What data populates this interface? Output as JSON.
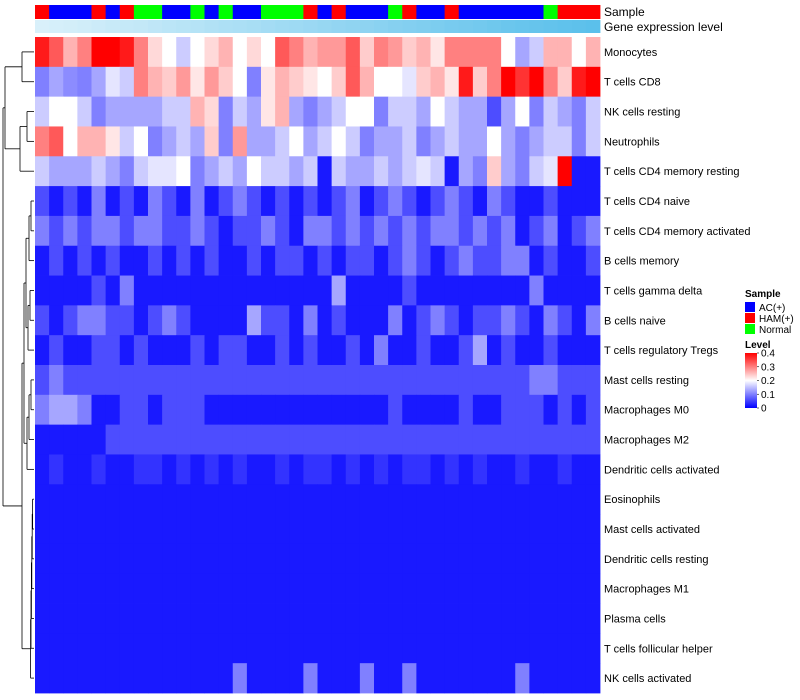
{
  "chart_data": {
    "type": "heatmap",
    "title": "",
    "annotation_rows": [
      {
        "name": "Sample",
        "label": "Sample"
      },
      {
        "name": "Gene expression level",
        "label": "Gene expression level"
      }
    ],
    "sample_annotation": [
      "HAM(+)",
      "AC(+)",
      "AC(+)",
      "AC(+)",
      "HAM(+)",
      "AC(+)",
      "HAM(+)",
      "Normal",
      "Normal",
      "AC(+)",
      "AC(+)",
      "Normal",
      "AC(+)",
      "Normal",
      "AC(+)",
      "AC(+)",
      "Normal",
      "Normal",
      "Normal",
      "HAM(+)",
      "AC(+)",
      "HAM(+)",
      "AC(+)",
      "AC(+)",
      "AC(+)",
      "Normal",
      "HAM(+)",
      "AC(+)",
      "AC(+)",
      "HAM(+)",
      "AC(+)",
      "AC(+)",
      "AC(+)",
      "AC(+)",
      "AC(+)",
      "AC(+)",
      "Normal",
      "HAM(+)",
      "HAM(+)",
      "HAM(+)"
    ],
    "expression_annotation": [
      0.05,
      0.08,
      0.1,
      0.12,
      0.15,
      0.18,
      0.2,
      0.22,
      0.25,
      0.28,
      0.3,
      0.32,
      0.35,
      0.38,
      0.4,
      0.42,
      0.45,
      0.48,
      0.5,
      0.52,
      0.55,
      0.58,
      0.6,
      0.62,
      0.65,
      0.68,
      0.7,
      0.72,
      0.75,
      0.78,
      0.8,
      0.82,
      0.85,
      0.88,
      0.9,
      0.92,
      0.94,
      0.96,
      0.98,
      1.0
    ],
    "rows": [
      "Monocytes",
      "T cells CD8",
      "NK cells resting",
      "Neutrophils",
      "T cells CD4 memory resting",
      "T cells CD4 naive",
      "T cells CD4 memory activated",
      "B cells memory",
      "T cells gamma delta",
      "B cells naive",
      "T cells regulatory  Tregs",
      "Mast cells resting",
      "Macrophages M0",
      "Macrophages M2",
      "Dendritic cells activated",
      "Eosinophils",
      "Mast cells activated",
      "Dendritic cells resting",
      "Macrophages M1",
      "Plasma cells",
      "T cells follicular helper",
      "NK cells activated"
    ],
    "values": [
      [
        0.38,
        0.33,
        0.26,
        0.3,
        0.4,
        0.4,
        0.38,
        0.3,
        0.23,
        0.2,
        0.16,
        0.2,
        0.23,
        0.26,
        0.2,
        0.23,
        0.2,
        0.33,
        0.3,
        0.26,
        0.28,
        0.28,
        0.33,
        0.24,
        0.3,
        0.28,
        0.24,
        0.26,
        0.22,
        0.3,
        0.3,
        0.3,
        0.3,
        0.2,
        0.13,
        0.16,
        0.26,
        0.26,
        0.2,
        0.26
      ],
      [
        0.1,
        0.13,
        0.11,
        0.1,
        0.13,
        0.18,
        0.16,
        0.3,
        0.26,
        0.24,
        0.28,
        0.22,
        0.28,
        0.24,
        0.2,
        0.1,
        0.22,
        0.26,
        0.24,
        0.22,
        0.2,
        0.24,
        0.33,
        0.26,
        0.2,
        0.2,
        0.18,
        0.24,
        0.26,
        0.22,
        0.38,
        0.24,
        0.3,
        0.4,
        0.36,
        0.4,
        0.3,
        0.24,
        0.38,
        0.4
      ],
      [
        0.16,
        0.2,
        0.2,
        0.16,
        0.1,
        0.13,
        0.13,
        0.13,
        0.13,
        0.16,
        0.16,
        0.26,
        0.23,
        0.1,
        0.16,
        0.13,
        0.22,
        0.26,
        0.13,
        0.1,
        0.13,
        0.16,
        0.2,
        0.2,
        0.1,
        0.16,
        0.16,
        0.13,
        0.2,
        0.16,
        0.13,
        0.13,
        0.06,
        0.13,
        0.2,
        0.1,
        0.16,
        0.13,
        0.1,
        0.16
      ],
      [
        0.3,
        0.33,
        0.2,
        0.26,
        0.26,
        0.22,
        0.16,
        0.2,
        0.1,
        0.13,
        0.16,
        0.13,
        0.24,
        0.1,
        0.28,
        0.13,
        0.13,
        0.16,
        0.2,
        0.13,
        0.16,
        0.2,
        0.16,
        0.1,
        0.13,
        0.13,
        0.16,
        0.1,
        0.13,
        0.16,
        0.13,
        0.13,
        0.2,
        0.13,
        0.1,
        0.13,
        0.16,
        0.16,
        0.1,
        0.16
      ],
      [
        0.16,
        0.13,
        0.13,
        0.13,
        0.16,
        0.13,
        0.1,
        0.16,
        0.18,
        0.18,
        0.2,
        0.1,
        0.13,
        0.16,
        0.13,
        0.2,
        0.16,
        0.16,
        0.13,
        0.16,
        0.02,
        0.16,
        0.13,
        0.13,
        0.16,
        0.13,
        0.16,
        0.18,
        0.16,
        0.02,
        0.13,
        0.1,
        0.24,
        0.13,
        0.1,
        0.16,
        0.18,
        0.4,
        0.02,
        0.02
      ],
      [
        0.06,
        0.02,
        0.06,
        0.02,
        0.1,
        0.02,
        0.06,
        0.02,
        0.1,
        0.06,
        0.02,
        0.1,
        0.02,
        0.06,
        0.1,
        0.06,
        0.02,
        0.06,
        0.02,
        0.06,
        0.02,
        0.06,
        0.1,
        0.02,
        0.06,
        0.1,
        0.06,
        0.02,
        0.06,
        0.1,
        0.06,
        0.02,
        0.1,
        0.06,
        0.02,
        0.02,
        0.06,
        0.02,
        0.02,
        0.02
      ],
      [
        0.1,
        0.06,
        0.1,
        0.06,
        0.1,
        0.1,
        0.06,
        0.1,
        0.1,
        0.06,
        0.06,
        0.1,
        0.06,
        0.02,
        0.06,
        0.06,
        0.1,
        0.06,
        0.02,
        0.1,
        0.1,
        0.06,
        0.1,
        0.06,
        0.1,
        0.06,
        0.1,
        0.06,
        0.1,
        0.1,
        0.06,
        0.1,
        0.06,
        0.1,
        0.02,
        0.06,
        0.1,
        0.02,
        0.06,
        0.1
      ],
      [
        0.02,
        0.06,
        0.02,
        0.06,
        0.02,
        0.06,
        0.02,
        0.02,
        0.06,
        0.02,
        0.06,
        0.02,
        0.06,
        0.02,
        0.02,
        0.06,
        0.02,
        0.06,
        0.06,
        0.02,
        0.06,
        0.02,
        0.06,
        0.06,
        0.02,
        0.06,
        0.1,
        0.06,
        0.02,
        0.06,
        0.1,
        0.06,
        0.06,
        0.1,
        0.1,
        0.02,
        0.06,
        0.02,
        0.02,
        0.06
      ],
      [
        0.02,
        0.02,
        0.02,
        0.02,
        0.06,
        0.02,
        0.1,
        0.02,
        0.02,
        0.02,
        0.02,
        0.02,
        0.02,
        0.02,
        0.02,
        0.02,
        0.02,
        0.02,
        0.02,
        0.02,
        0.02,
        0.13,
        0.02,
        0.02,
        0.02,
        0.02,
        0.06,
        0.02,
        0.02,
        0.02,
        0.02,
        0.02,
        0.02,
        0.02,
        0.02,
        0.1,
        0.02,
        0.02,
        0.02,
        0.02
      ],
      [
        0.06,
        0.02,
        0.06,
        0.1,
        0.1,
        0.06,
        0.06,
        0.02,
        0.06,
        0.1,
        0.06,
        0.02,
        0.02,
        0.02,
        0.02,
        0.13,
        0.06,
        0.06,
        0.02,
        0.1,
        0.02,
        0.06,
        0.02,
        0.02,
        0.02,
        0.1,
        0.02,
        0.06,
        0.1,
        0.06,
        0.02,
        0.06,
        0.06,
        0.1,
        0.06,
        0.02,
        0.1,
        0.06,
        0.02,
        0.1
      ],
      [
        0.02,
        0.06,
        0.02,
        0.02,
        0.06,
        0.06,
        0.02,
        0.06,
        0.02,
        0.02,
        0.02,
        0.06,
        0.02,
        0.06,
        0.06,
        0.02,
        0.02,
        0.06,
        0.02,
        0.06,
        0.02,
        0.02,
        0.06,
        0.02,
        0.1,
        0.02,
        0.02,
        0.06,
        0.02,
        0.02,
        0.06,
        0.13,
        0.02,
        0.06,
        0.02,
        0.02,
        0.06,
        0.02,
        0.02,
        0.02
      ],
      [
        0.06,
        0.1,
        0.06,
        0.06,
        0.06,
        0.06,
        0.06,
        0.06,
        0.06,
        0.06,
        0.06,
        0.06,
        0.06,
        0.06,
        0.06,
        0.06,
        0.06,
        0.06,
        0.06,
        0.06,
        0.06,
        0.06,
        0.06,
        0.06,
        0.06,
        0.06,
        0.06,
        0.06,
        0.06,
        0.06,
        0.06,
        0.06,
        0.06,
        0.06,
        0.06,
        0.1,
        0.1,
        0.06,
        0.06,
        0.06
      ],
      [
        0.1,
        0.13,
        0.13,
        0.1,
        0.02,
        0.02,
        0.06,
        0.06,
        0.02,
        0.06,
        0.06,
        0.06,
        0.02,
        0.02,
        0.02,
        0.02,
        0.02,
        0.02,
        0.02,
        0.02,
        0.02,
        0.02,
        0.02,
        0.02,
        0.02,
        0.06,
        0.02,
        0.02,
        0.02,
        0.02,
        0.06,
        0.02,
        0.02,
        0.06,
        0.06,
        0.06,
        0.02,
        0.06,
        0.02,
        0.06
      ],
      [
        0.02,
        0.02,
        0.02,
        0.02,
        0.02,
        0.06,
        0.06,
        0.06,
        0.06,
        0.06,
        0.06,
        0.06,
        0.06,
        0.06,
        0.06,
        0.06,
        0.06,
        0.06,
        0.06,
        0.06,
        0.06,
        0.06,
        0.06,
        0.06,
        0.06,
        0.06,
        0.06,
        0.06,
        0.06,
        0.06,
        0.06,
        0.06,
        0.06,
        0.06,
        0.06,
        0.06,
        0.06,
        0.06,
        0.06,
        0.06
      ],
      [
        0.02,
        0.04,
        0.02,
        0.02,
        0.04,
        0.02,
        0.02,
        0.04,
        0.04,
        0.02,
        0.04,
        0.02,
        0.04,
        0.02,
        0.04,
        0.02,
        0.02,
        0.04,
        0.02,
        0.04,
        0.04,
        0.02,
        0.04,
        0.02,
        0.04,
        0.02,
        0.04,
        0.04,
        0.02,
        0.04,
        0.02,
        0.04,
        0.02,
        0.02,
        0.04,
        0.02,
        0.02,
        0.04,
        0.02,
        0.02
      ],
      [
        0.02,
        0.02,
        0.02,
        0.02,
        0.02,
        0.02,
        0.02,
        0.02,
        0.02,
        0.02,
        0.02,
        0.02,
        0.02,
        0.02,
        0.02,
        0.02,
        0.02,
        0.02,
        0.02,
        0.02,
        0.02,
        0.02,
        0.02,
        0.02,
        0.02,
        0.02,
        0.02,
        0.02,
        0.02,
        0.02,
        0.02,
        0.02,
        0.02,
        0.02,
        0.02,
        0.02,
        0.02,
        0.02,
        0.02,
        0.02
      ],
      [
        0.02,
        0.02,
        0.02,
        0.02,
        0.02,
        0.02,
        0.02,
        0.02,
        0.02,
        0.02,
        0.02,
        0.02,
        0.02,
        0.02,
        0.02,
        0.02,
        0.02,
        0.02,
        0.02,
        0.02,
        0.02,
        0.02,
        0.02,
        0.02,
        0.02,
        0.02,
        0.02,
        0.02,
        0.02,
        0.02,
        0.02,
        0.02,
        0.02,
        0.02,
        0.02,
        0.02,
        0.02,
        0.02,
        0.02,
        0.02
      ],
      [
        0.02,
        0.02,
        0.02,
        0.02,
        0.02,
        0.02,
        0.02,
        0.02,
        0.02,
        0.02,
        0.02,
        0.02,
        0.02,
        0.02,
        0.02,
        0.02,
        0.02,
        0.02,
        0.02,
        0.02,
        0.02,
        0.02,
        0.02,
        0.02,
        0.02,
        0.02,
        0.02,
        0.02,
        0.02,
        0.02,
        0.02,
        0.02,
        0.02,
        0.02,
        0.02,
        0.02,
        0.02,
        0.02,
        0.02,
        0.02
      ],
      [
        0.02,
        0.02,
        0.02,
        0.02,
        0.02,
        0.02,
        0.02,
        0.02,
        0.02,
        0.02,
        0.02,
        0.02,
        0.02,
        0.02,
        0.02,
        0.02,
        0.02,
        0.02,
        0.02,
        0.02,
        0.02,
        0.02,
        0.02,
        0.02,
        0.02,
        0.02,
        0.02,
        0.02,
        0.02,
        0.02,
        0.02,
        0.02,
        0.02,
        0.02,
        0.02,
        0.02,
        0.02,
        0.02,
        0.02,
        0.02
      ],
      [
        0.02,
        0.02,
        0.02,
        0.02,
        0.02,
        0.02,
        0.02,
        0.02,
        0.02,
        0.02,
        0.02,
        0.02,
        0.02,
        0.02,
        0.02,
        0.02,
        0.02,
        0.02,
        0.02,
        0.02,
        0.02,
        0.02,
        0.02,
        0.02,
        0.02,
        0.02,
        0.02,
        0.02,
        0.02,
        0.02,
        0.02,
        0.02,
        0.02,
        0.02,
        0.02,
        0.02,
        0.02,
        0.02,
        0.02,
        0.02
      ],
      [
        0.02,
        0.02,
        0.02,
        0.02,
        0.02,
        0.02,
        0.02,
        0.02,
        0.02,
        0.02,
        0.02,
        0.02,
        0.02,
        0.02,
        0.02,
        0.02,
        0.02,
        0.02,
        0.02,
        0.02,
        0.02,
        0.02,
        0.02,
        0.02,
        0.02,
        0.02,
        0.02,
        0.02,
        0.02,
        0.02,
        0.02,
        0.02,
        0.02,
        0.02,
        0.02,
        0.02,
        0.02,
        0.02,
        0.02,
        0.02
      ],
      [
        0.02,
        0.02,
        0.02,
        0.02,
        0.02,
        0.02,
        0.02,
        0.02,
        0.02,
        0.02,
        0.02,
        0.02,
        0.02,
        0.02,
        0.1,
        0.02,
        0.02,
        0.02,
        0.02,
        0.1,
        0.02,
        0.02,
        0.02,
        0.1,
        0.02,
        0.02,
        0.1,
        0.02,
        0.02,
        0.02,
        0.02,
        0.02,
        0.02,
        0.02,
        0.1,
        0.02,
        0.02,
        0.02,
        0.02,
        0.02
      ]
    ],
    "color_scale": {
      "min": 0,
      "mid": 0.2,
      "max": 0.4,
      "low": "#0000ff",
      "midcolor": "#ffffff",
      "high": "#ff0000"
    },
    "legend_sample": {
      "title": "Sample",
      "entries": [
        {
          "label": "AC(+)",
          "color": "#0000ff"
        },
        {
          "label": "HAM(+)",
          "color": "#ff0000"
        },
        {
          "label": "Normal",
          "color": "#00ff00"
        }
      ]
    },
    "legend_level": {
      "title": "Level",
      "ticks": [
        "0.4",
        "0.3",
        "0.2",
        "0.1",
        "0"
      ]
    },
    "expression_colors": {
      "low": "#e0f3fb",
      "high": "#5bc0eb"
    }
  }
}
